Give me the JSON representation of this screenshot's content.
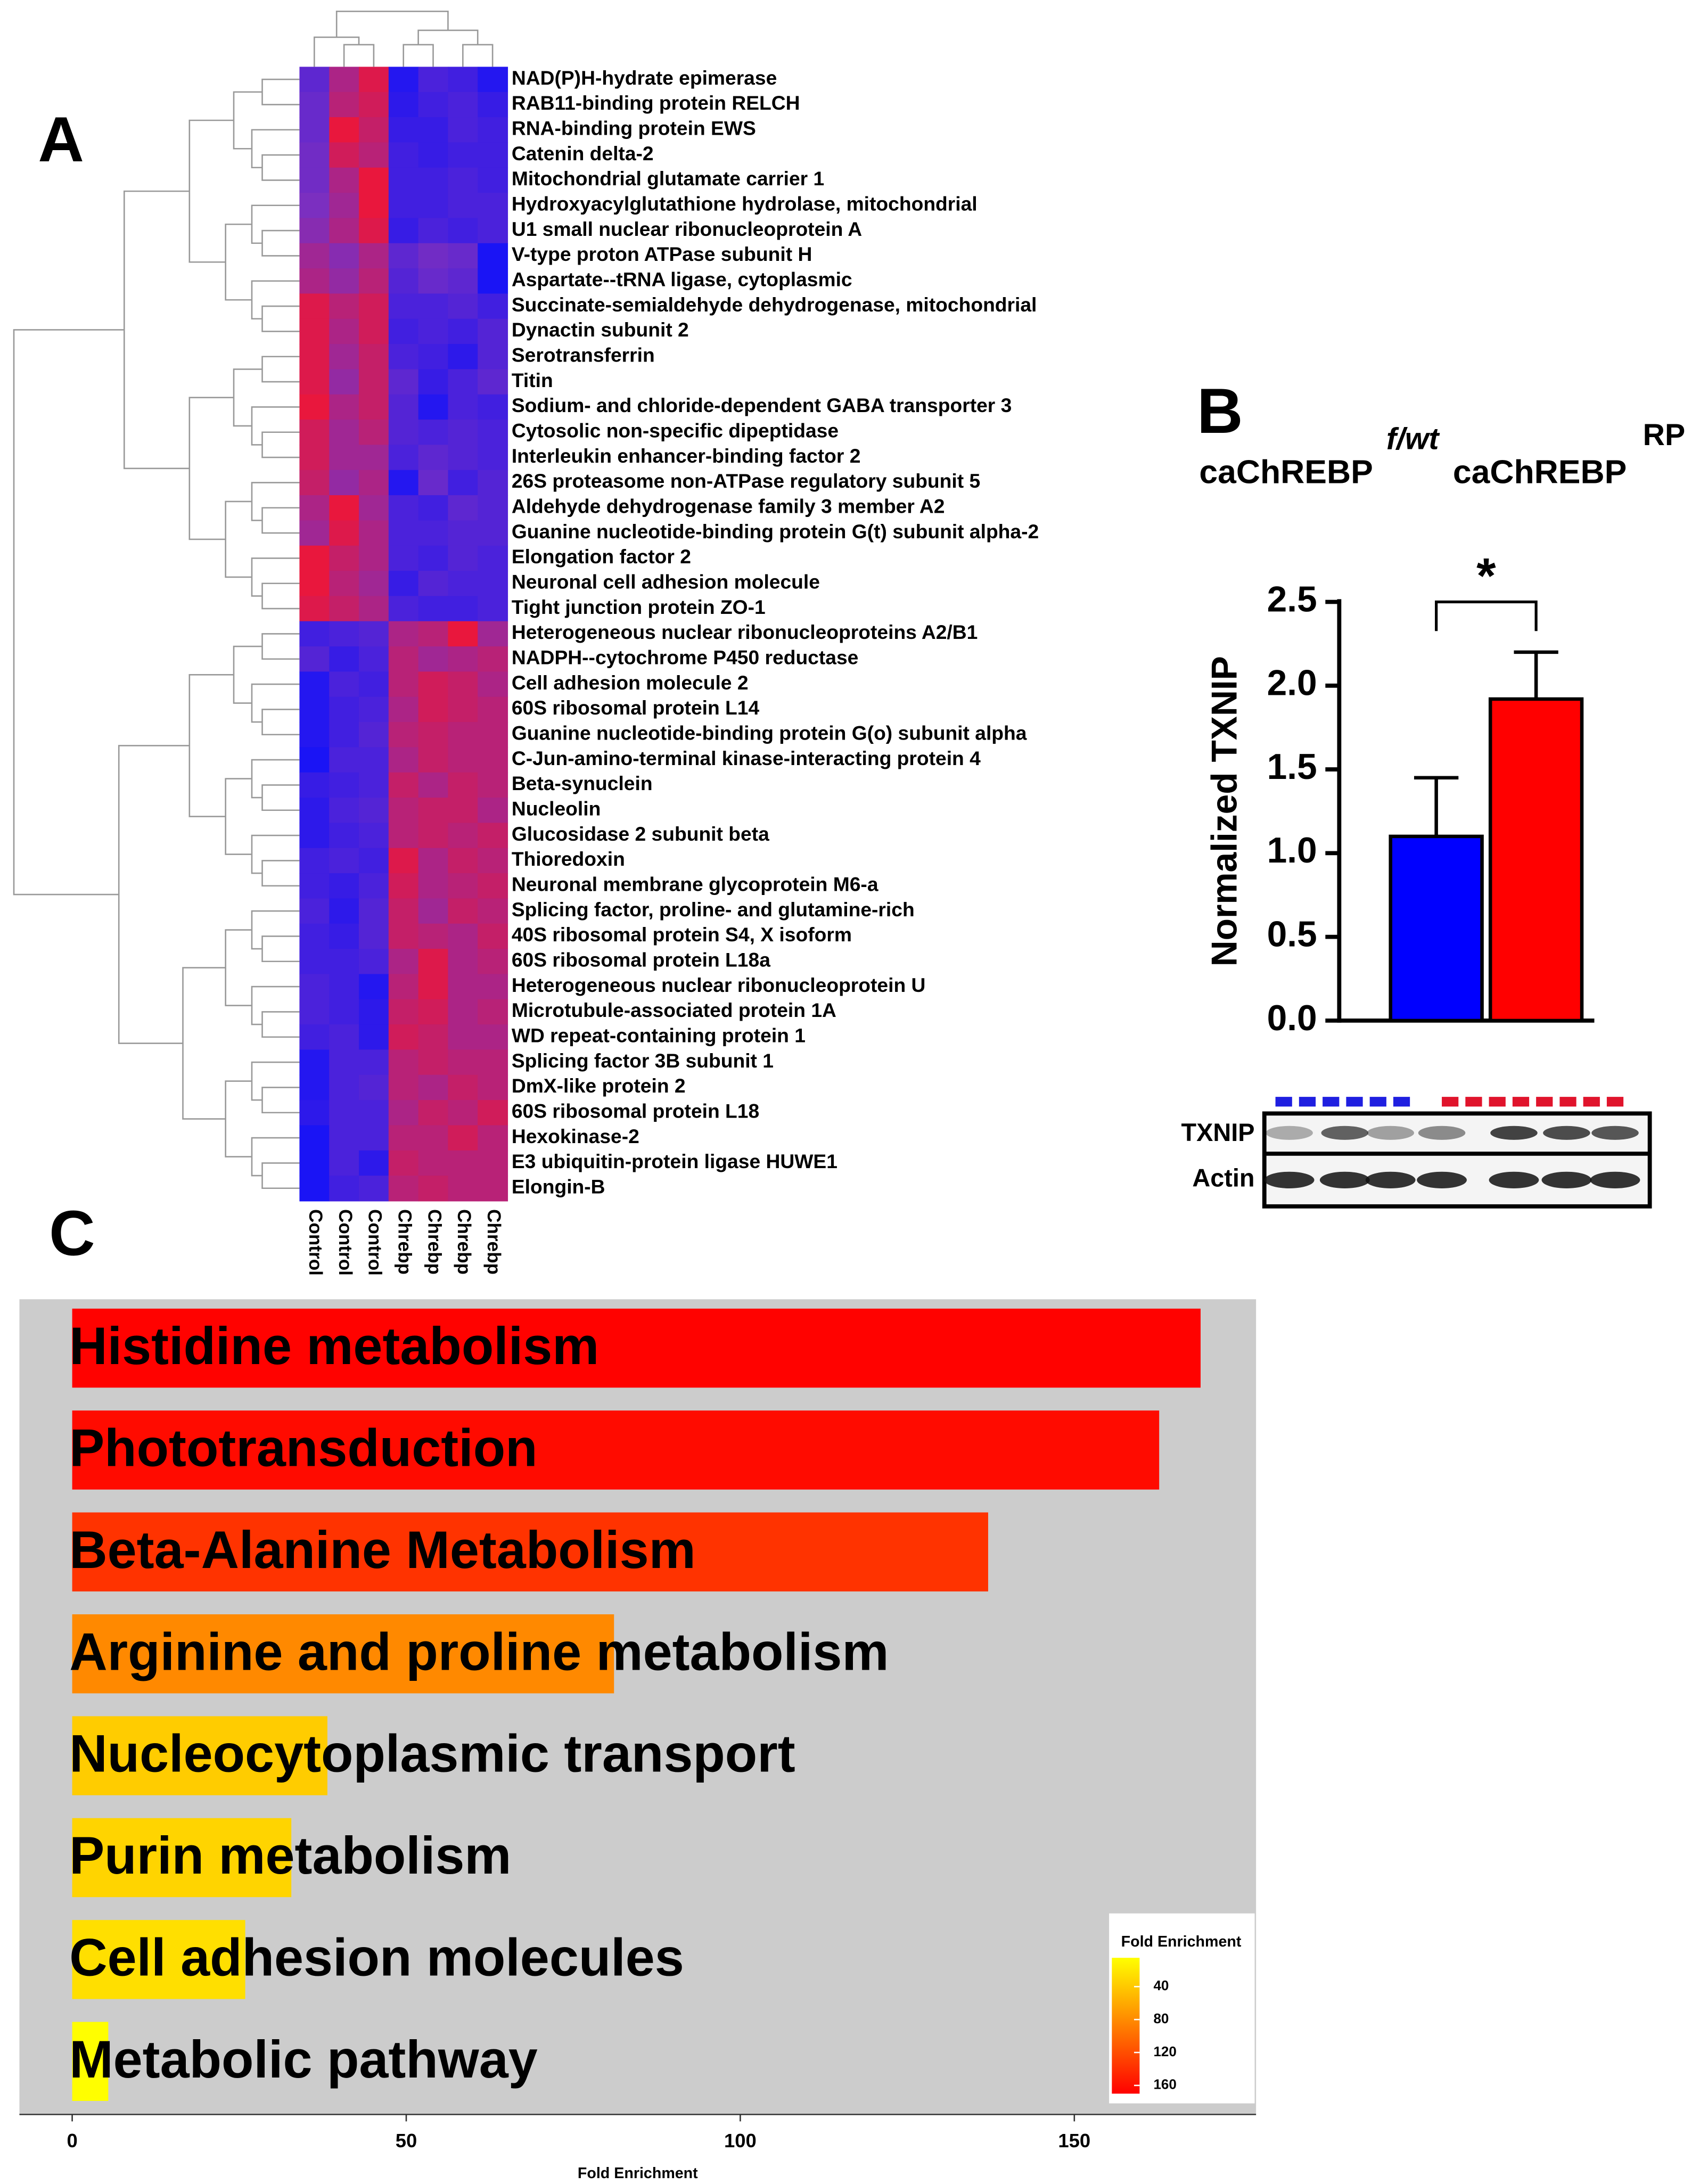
{
  "chart_data": [
    {
      "type": "heatmap",
      "panel": "A",
      "rows": [
        "NAD(P)H-hydrate epimerase",
        "RAB11-binding protein RELCH",
        "RNA-binding protein EWS",
        "Catenin delta-2",
        "Mitochondrial glutamate carrier 1",
        "Hydroxyacylglutathione hydrolase, mitochondrial",
        "U1 small nuclear ribonucleoprotein A",
        "V-type proton ATPase subunit H",
        "Aspartate--tRNA ligase, cytoplasmic",
        "Succinate-semialdehyde dehydrogenase, mitochondrial",
        "Dynactin subunit 2",
        "Serotransferrin",
        "Titin",
        "Sodium- and chloride-dependent GABA transporter 3",
        "Cytosolic non-specific dipeptidase",
        "Interleukin enhancer-binding factor 2",
        "26S proteasome non-ATPase regulatory subunit 5",
        "Aldehyde dehydrogenase family 3 member A2",
        "Guanine nucleotide-binding protein G(t) subunit alpha-2",
        "Elongation factor 2",
        "Neuronal cell adhesion molecule",
        "Tight junction protein ZO-1",
        "Heterogeneous nuclear ribonucleoproteins A2/B1",
        "NADPH--cytochrome P450 reductase",
        "Cell adhesion molecule 2",
        "60S ribosomal protein L14",
        "Guanine nucleotide-binding protein G(o) subunit alpha",
        "C-Jun-amino-terminal kinase-interacting protein 4",
        "Beta-synuclein",
        "Nucleolin",
        "Glucosidase 2 subunit beta",
        "Thioredoxin",
        "Neuronal membrane glycoprotein M6-a",
        "Splicing factor, proline- and glutamine-rich",
        "40S ribosomal protein S4, X isoform",
        "60S ribosomal protein L18a",
        "Heterogeneous nuclear ribonucleoprotein U",
        "Microtubule-associated protein 1A",
        "WD repeat-containing protein 1",
        "Splicing factor 3B subunit 1",
        "DmX-like protein 2",
        "60S ribosomal protein L18",
        "Hexokinase-2",
        "E3 ubiquitin-protein ligase HUWE1",
        "Elongin-B"
      ],
      "columns": [
        "Control",
        "Control",
        "Control",
        "Chrebp",
        "Chrebp",
        "Chrebp",
        "Chrebp"
      ],
      "values": [
        [
          -0.3,
          0.4,
          0.8,
          -0.9,
          -0.5,
          -0.6,
          -0.9
        ],
        [
          -0.2,
          0.5,
          0.7,
          -0.8,
          -0.6,
          -0.5,
          -0.7
        ],
        [
          -0.2,
          0.9,
          0.6,
          -0.7,
          -0.7,
          -0.5,
          -0.6
        ],
        [
          -0.1,
          0.7,
          0.5,
          -0.6,
          -0.7,
          -0.6,
          -0.6
        ],
        [
          -0.1,
          0.4,
          0.9,
          -0.6,
          -0.6,
          -0.5,
          -0.6
        ],
        [
          0.0,
          0.3,
          0.9,
          -0.6,
          -0.6,
          -0.5,
          -0.5
        ],
        [
          0.1,
          0.4,
          0.8,
          -0.7,
          -0.5,
          -0.6,
          -0.5
        ],
        [
          0.3,
          0.1,
          0.4,
          -0.3,
          -0.1,
          -0.2,
          -1
        ],
        [
          0.4,
          0.2,
          0.5,
          -0.4,
          -0.2,
          -0.3,
          -1
        ],
        [
          0.8,
          0.5,
          0.7,
          -0.5,
          -0.5,
          -0.4,
          -0.6
        ],
        [
          0.8,
          0.4,
          0.7,
          -0.6,
          -0.5,
          -0.6,
          -0.4
        ],
        [
          0.8,
          0.3,
          0.6,
          -0.5,
          -0.6,
          -0.8,
          -0.4
        ],
        [
          0.8,
          0.2,
          0.6,
          -0.3,
          -0.7,
          -0.5,
          -0.3
        ],
        [
          0.9,
          0.4,
          0.6,
          -0.4,
          -0.9,
          -0.5,
          -0.6
        ],
        [
          0.7,
          0.3,
          0.5,
          -0.4,
          -0.5,
          -0.4,
          -0.5
        ],
        [
          0.7,
          0.3,
          0.3,
          -0.5,
          -0.3,
          -0.4,
          -0.5
        ],
        [
          0.6,
          0.2,
          0.4,
          -0.9,
          -0.2,
          -0.6,
          -0.4
        ],
        [
          0.4,
          0.9,
          0.3,
          -0.5,
          -0.6,
          -0.3,
          -0.4
        ],
        [
          0.3,
          0.8,
          0.4,
          -0.5,
          -0.5,
          -0.4,
          -0.4
        ],
        [
          0.9,
          0.6,
          0.4,
          -0.5,
          -0.6,
          -0.4,
          -0.5
        ],
        [
          0.9,
          0.5,
          0.3,
          -0.7,
          -0.4,
          -0.5,
          -0.5
        ],
        [
          0.8,
          0.6,
          0.4,
          -0.5,
          -0.6,
          -0.6,
          -0.5
        ],
        [
          -0.6,
          -0.5,
          -0.4,
          0.4,
          0.5,
          0.9,
          0.3
        ],
        [
          -0.4,
          -0.7,
          -0.5,
          0.5,
          0.3,
          0.4,
          0.5
        ],
        [
          -0.9,
          -0.5,
          -0.6,
          0.5,
          0.7,
          0.6,
          0.4
        ],
        [
          -0.9,
          -0.6,
          -0.5,
          0.4,
          0.7,
          0.6,
          0.5
        ],
        [
          -0.9,
          -0.6,
          -0.4,
          0.5,
          0.6,
          0.5,
          0.5
        ],
        [
          -1,
          -0.5,
          -0.5,
          0.4,
          0.6,
          0.5,
          0.5
        ],
        [
          -0.7,
          -0.6,
          -0.5,
          0.6,
          0.4,
          0.6,
          0.5
        ],
        [
          -0.8,
          -0.5,
          -0.4,
          0.5,
          0.6,
          0.6,
          0.4
        ],
        [
          -0.8,
          -0.6,
          -0.5,
          0.5,
          0.6,
          0.5,
          0.6
        ],
        [
          -0.6,
          -0.5,
          -0.6,
          0.8,
          0.4,
          0.6,
          0.5
        ],
        [
          -0.6,
          -0.7,
          -0.5,
          0.7,
          0.4,
          0.5,
          0.6
        ],
        [
          -0.5,
          -0.8,
          -0.4,
          0.6,
          0.3,
          0.6,
          0.5
        ],
        [
          -0.6,
          -0.7,
          -0.4,
          0.6,
          0.5,
          0.4,
          0.6
        ],
        [
          -0.6,
          -0.6,
          -0.5,
          0.4,
          0.8,
          0.4,
          0.5
        ],
        [
          -0.5,
          -0.6,
          -0.9,
          0.5,
          0.8,
          0.4,
          0.4
        ],
        [
          -0.5,
          -0.6,
          -0.8,
          0.6,
          0.7,
          0.4,
          0.5
        ],
        [
          -0.6,
          -0.5,
          -0.8,
          0.7,
          0.6,
          0.4,
          0.4
        ],
        [
          -0.9,
          -0.5,
          -0.5,
          0.5,
          0.6,
          0.5,
          0.5
        ],
        [
          -0.9,
          -0.5,
          -0.4,
          0.5,
          0.4,
          0.6,
          0.5
        ],
        [
          -0.8,
          -0.5,
          -0.5,
          0.4,
          0.6,
          0.5,
          0.7
        ],
        [
          -1,
          -0.5,
          -0.5,
          0.5,
          0.5,
          0.7,
          0.5
        ],
        [
          -1,
          -0.5,
          -0.8,
          0.6,
          0.5,
          0.5,
          0.5
        ],
        [
          -1,
          -0.6,
          -0.5,
          0.5,
          0.6,
          0.5,
          0.5
        ]
      ],
      "zlim": [
        -1,
        1
      ],
      "colors": [
        "#1a14f5",
        "#7b2fc0",
        "#f5142e"
      ]
    },
    {
      "type": "bar",
      "panel": "B",
      "ylabel": "Normalized TXNIP",
      "annotation": "*",
      "series": [
        {
          "name": "caChREBP",
          "superscript": "f/wt",
          "color": "#0000ff",
          "values": [
            1.1
          ],
          "errors": [
            0.35
          ]
        },
        {
          "name": "caChREBP",
          "superscript": "RP",
          "color": "#ff0000",
          "values": [
            1.92
          ],
          "errors": [
            0.28
          ]
        }
      ],
      "ylim": [
        0,
        2.5
      ],
      "yticks": [
        {
          "value": 0,
          "label": "0.0"
        },
        0.5,
        {
          "value": 1,
          "label": "1.0"
        },
        1.5,
        {
          "value": 2,
          "label": "2.0"
        },
        2.5
      ],
      "blot_labels": [
        "TXNIP",
        "Actin"
      ]
    },
    {
      "type": "barh",
      "panel": "C",
      "xlabel": "Fold Enrichment",
      "categories": [
        "Histidine metabolism",
        "Phototransduction",
        "Beta-Alanine Metabolism",
        "Arginine and proline metabolism",
        "Nucleocytoplasmic transport",
        "Purin metabolism",
        "Cell adhesion molecules",
        "Metabolic pathway"
      ],
      "values": [
        168.9,
        162.7,
        137.1,
        81.1,
        38.2,
        32.8,
        25.9,
        5.4
      ],
      "xlim": [
        -7.9,
        177.2
      ],
      "xticks": [
        0,
        50,
        100,
        150
      ],
      "colorbar": {
        "title": "Fold Enrichment",
        "lim": [
          5,
          170
        ],
        "ticks": [
          40,
          80,
          120,
          160
        ],
        "colors": [
          "#ffff00",
          "#ff0000"
        ]
      }
    }
  ]
}
